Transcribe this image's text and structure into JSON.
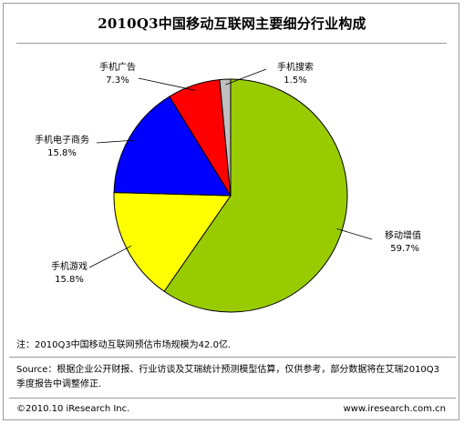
{
  "chart_data": {
    "type": "pie",
    "title": "2010Q3中国移动互联网主要细分行业构成",
    "unit": "%",
    "slices": [
      {
        "name": "移动增值",
        "value": 59.7,
        "label": "59.7%",
        "color": "#99cc00"
      },
      {
        "name": "手机游戏",
        "value": 15.8,
        "label": "15.8%",
        "color": "#ffff00"
      },
      {
        "name": "手机电子商务",
        "value": 15.8,
        "label": "15.8%",
        "color": "#0000ff"
      },
      {
        "name": "手机广告",
        "value": 7.3,
        "label": "7.3%",
        "color": "#ff0000"
      },
      {
        "name": "手机搜索",
        "value": 1.5,
        "label": "1.5%",
        "color": "#c0c0c0"
      }
    ]
  },
  "note": "注：2010Q3中国移动互联网预估市场规模为42.0亿.",
  "source": "Source：根据企业公开财报、行业访谈及艾瑞统计预测模型估算，仅供参考，部分数据将在艾瑞2010Q3季度报告中调整修正.",
  "footer": {
    "copyright": "©2010.10 iResearch Inc.",
    "url": "www.iresearch.com.cn"
  }
}
